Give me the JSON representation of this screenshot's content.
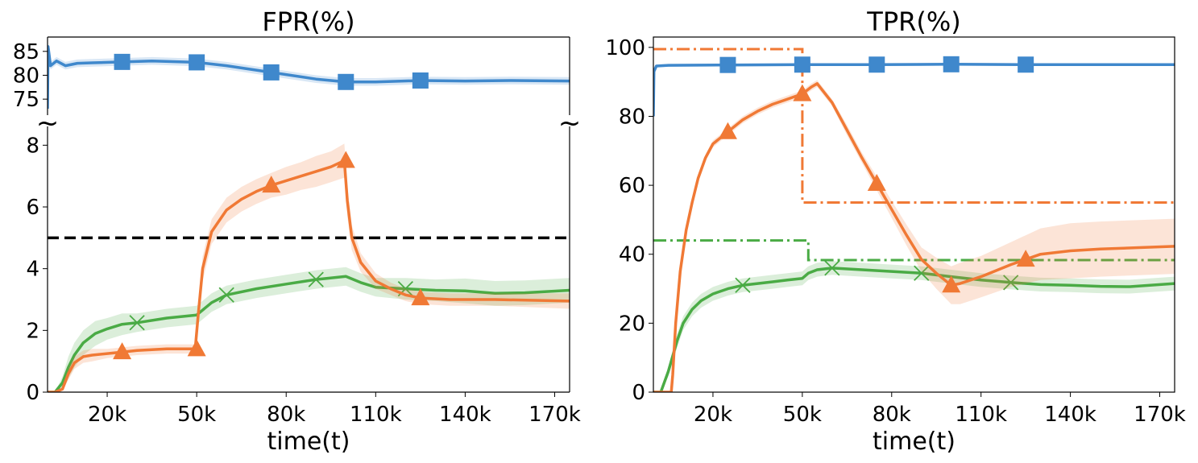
{
  "chart_data": [
    {
      "type": "line",
      "title": "FPR(%)",
      "xlabel": "time(t)",
      "ylabel": "",
      "x_ticks": [
        20000,
        50000,
        80000,
        110000,
        140000,
        170000
      ],
      "x_tick_labels": [
        "20k",
        "50k",
        "80k",
        "110k",
        "140k",
        "170k"
      ],
      "xlim": [
        0,
        175000
      ],
      "broken_axis": true,
      "break_symbol": "~",
      "upper_axis": {
        "ylim": [
          73,
          88
        ],
        "y_ticks": [
          75,
          80,
          85
        ],
        "y_tick_labels": [
          "75",
          "80",
          "85"
        ]
      },
      "lower_axis": {
        "ylim": [
          0,
          8.4
        ],
        "y_ticks": [
          0,
          2,
          4,
          6,
          8
        ],
        "y_tick_labels": [
          "0",
          "2",
          "4",
          "6",
          "8"
        ]
      },
      "reference_line": {
        "y": 5,
        "style": "dashed",
        "color": "#000000"
      },
      "series": [
        {
          "color": "#3f88cc",
          "marker": "square",
          "axis": "upper",
          "x": [
            0,
            200,
            1000,
            3000,
            6000,
            10000,
            15000,
            25000,
            35000,
            50000,
            60000,
            75000,
            90000,
            100000,
            110000,
            125000,
            140000,
            155000,
            175000
          ],
          "y": [
            73,
            86,
            82,
            83,
            82,
            82.5,
            82.6,
            82.8,
            83,
            82.7,
            82,
            80.6,
            79.2,
            78.6,
            78.6,
            78.9,
            78.8,
            78.9,
            78.8
          ],
          "marker_x": [
            25000,
            50000,
            75000,
            100000,
            125000
          ],
          "marker_y": [
            82.8,
            82.7,
            80.6,
            78.6,
            78.9
          ],
          "band": 0.8
        },
        {
          "color": "#f07935",
          "marker": "triangle",
          "axis": "lower",
          "x": [
            0,
            2500,
            5000,
            7000,
            9000,
            12000,
            15000,
            20000,
            25000,
            30000,
            40000,
            49500,
            50500,
            52000,
            55000,
            60000,
            65000,
            70000,
            75000,
            80000,
            85000,
            90000,
            95000,
            99500,
            100500,
            102000,
            105000,
            110000,
            115000,
            120000,
            125000,
            135000,
            150000,
            175000
          ],
          "y": [
            0,
            0,
            0.1,
            0.6,
            0.95,
            1.15,
            1.2,
            1.25,
            1.3,
            1.35,
            1.4,
            1.4,
            2.5,
            4.0,
            5.2,
            5.9,
            6.25,
            6.5,
            6.7,
            6.85,
            7.0,
            7.15,
            7.3,
            7.5,
            6.2,
            5.0,
            4.2,
            3.6,
            3.35,
            3.15,
            3.05,
            3.0,
            3.0,
            2.95
          ],
          "marker_x": [
            25000,
            50000,
            75000,
            100000,
            125000
          ],
          "marker_y": [
            1.3,
            1.4,
            6.7,
            7.5,
            3.05
          ],
          "band": [
            0,
            0,
            0.05,
            0.2,
            0.2,
            0.2,
            0.2,
            0.15,
            0.15,
            0.15,
            0.15,
            0.15,
            0.3,
            0.4,
            0.4,
            0.4,
            0.4,
            0.4,
            0.4,
            0.45,
            0.45,
            0.5,
            0.5,
            0.55,
            0.5,
            0.4,
            0.3,
            0.25,
            0.2,
            0.2,
            0.2,
            0.2,
            0.2,
            0.25
          ]
        },
        {
          "color": "#4aab45",
          "marker": "x",
          "axis": "lower",
          "x": [
            0,
            2500,
            5000,
            7000,
            9000,
            12000,
            16000,
            20000,
            25000,
            30000,
            40000,
            50000,
            55000,
            60000,
            70000,
            80000,
            90000,
            100000,
            105000,
            110000,
            120000,
            130000,
            140000,
            150000,
            160000,
            175000
          ],
          "y": [
            0,
            0,
            0.3,
            0.8,
            1.2,
            1.6,
            1.9,
            2.05,
            2.2,
            2.25,
            2.4,
            2.5,
            2.9,
            3.15,
            3.35,
            3.5,
            3.65,
            3.75,
            3.55,
            3.4,
            3.35,
            3.3,
            3.28,
            3.2,
            3.22,
            3.3
          ],
          "marker_x": [
            30000,
            60000,
            90000,
            120000
          ],
          "marker_y": [
            2.25,
            3.15,
            3.65,
            3.35
          ],
          "band": [
            0,
            0,
            0.2,
            0.35,
            0.4,
            0.4,
            0.4,
            0.35,
            0.35,
            0.3,
            0.3,
            0.3,
            0.3,
            0.3,
            0.3,
            0.3,
            0.3,
            0.3,
            0.3,
            0.3,
            0.35,
            0.35,
            0.4,
            0.4,
            0.4,
            0.4
          ]
        }
      ]
    },
    {
      "type": "line",
      "title": "TPR(%)",
      "xlabel": "time(t)",
      "ylabel": "",
      "x_ticks": [
        20000,
        50000,
        80000,
        110000,
        140000,
        170000
      ],
      "x_tick_labels": [
        "20k",
        "50k",
        "80k",
        "110k",
        "140k",
        "170k"
      ],
      "xlim": [
        0,
        175000
      ],
      "ylim": [
        0,
        103
      ],
      "y_ticks": [
        0,
        20,
        40,
        60,
        80,
        100
      ],
      "y_tick_labels": [
        "0",
        "20",
        "40",
        "60",
        "80",
        "100"
      ],
      "series": [
        {
          "color": "#3f88cc",
          "marker": "square",
          "x": [
            0,
            200,
            1000,
            5000,
            25000,
            50000,
            75000,
            100000,
            125000,
            175000
          ],
          "y": [
            80,
            93,
            94.6,
            94.8,
            94.9,
            95,
            95,
            95.1,
            95,
            95
          ],
          "marker_x": [
            25000,
            50000,
            75000,
            100000,
            125000
          ],
          "marker_y": [
            94.9,
            95,
            95,
            95.1,
            95
          ],
          "band": 0.4
        },
        {
          "color": "#f07935",
          "marker": "triangle",
          "x": [
            0,
            5000,
            6000,
            6500,
            7500,
            9000,
            11000,
            13000,
            15000,
            17500,
            20000,
            25000,
            30000,
            35000,
            40000,
            45000,
            50000,
            53000,
            55000,
            60000,
            65000,
            70000,
            75000,
            80000,
            85000,
            90000,
            95000,
            100000,
            103000,
            110000,
            120000,
            125000,
            130000,
            140000,
            150000,
            175000
          ],
          "y": [
            0,
            0,
            0,
            5,
            20,
            35,
            47,
            55,
            62,
            68,
            72,
            75.5,
            79,
            81.5,
            83.5,
            85,
            86.5,
            88.5,
            89.5,
            84,
            76,
            68,
            60.5,
            53,
            45.5,
            38.5,
            34.5,
            31,
            31.5,
            33.5,
            37,
            38.5,
            40,
            41,
            41.5,
            42.3
          ],
          "marker_x": [
            25000,
            50000,
            75000,
            100000,
            125000
          ],
          "marker_y": [
            75.5,
            86.5,
            60.5,
            31,
            38.5
          ],
          "band": [
            0,
            0,
            0,
            0.5,
            1,
            1,
            1,
            1,
            1,
            1,
            1,
            1,
            1,
            1,
            1,
            1,
            1,
            1,
            1,
            1,
            1.5,
            1.5,
            2,
            2.5,
            3,
            3.5,
            4.5,
            5.5,
            6,
            6,
            6.5,
            7,
            7.5,
            8,
            8,
            8
          ],
          "reference_line": {
            "style": "dashdot",
            "x": [
              0,
              50000,
              50000,
              175000
            ],
            "y": [
              99.5,
              99.5,
              55,
              55
            ]
          }
        },
        {
          "color": "#4aab45",
          "marker": "x",
          "x": [
            0,
            2500,
            5000,
            8000,
            10000,
            13000,
            16000,
            20000,
            25000,
            30000,
            40000,
            45000,
            50000,
            52000,
            55000,
            60000,
            70000,
            80000,
            90000,
            100000,
            110000,
            120000,
            130000,
            140000,
            150000,
            160000,
            175000
          ],
          "y": [
            0,
            0,
            6,
            15,
            20,
            24,
            26.5,
            28.5,
            30,
            31,
            32,
            32.5,
            33,
            34.5,
            35.5,
            36,
            35.5,
            35,
            34.5,
            33.5,
            32.5,
            31.8,
            31.2,
            31,
            30.7,
            30.6,
            31.5
          ],
          "marker_x": [
            30000,
            60000,
            90000,
            120000
          ],
          "marker_y": [
            31,
            36,
            34.5,
            31.8
          ],
          "band": [
            0,
            0,
            1.5,
            2,
            2,
            2,
            2,
            2,
            2,
            2,
            2,
            2,
            2,
            2,
            2,
            2,
            2,
            2,
            2,
            2,
            2,
            2,
            2,
            2,
            2,
            2,
            2
          ],
          "reference_line": {
            "style": "dashdot",
            "x": [
              0,
              52000,
              52000,
              175000
            ],
            "y": [
              44,
              44,
              38.3,
              38.3
            ]
          }
        }
      ]
    }
  ]
}
